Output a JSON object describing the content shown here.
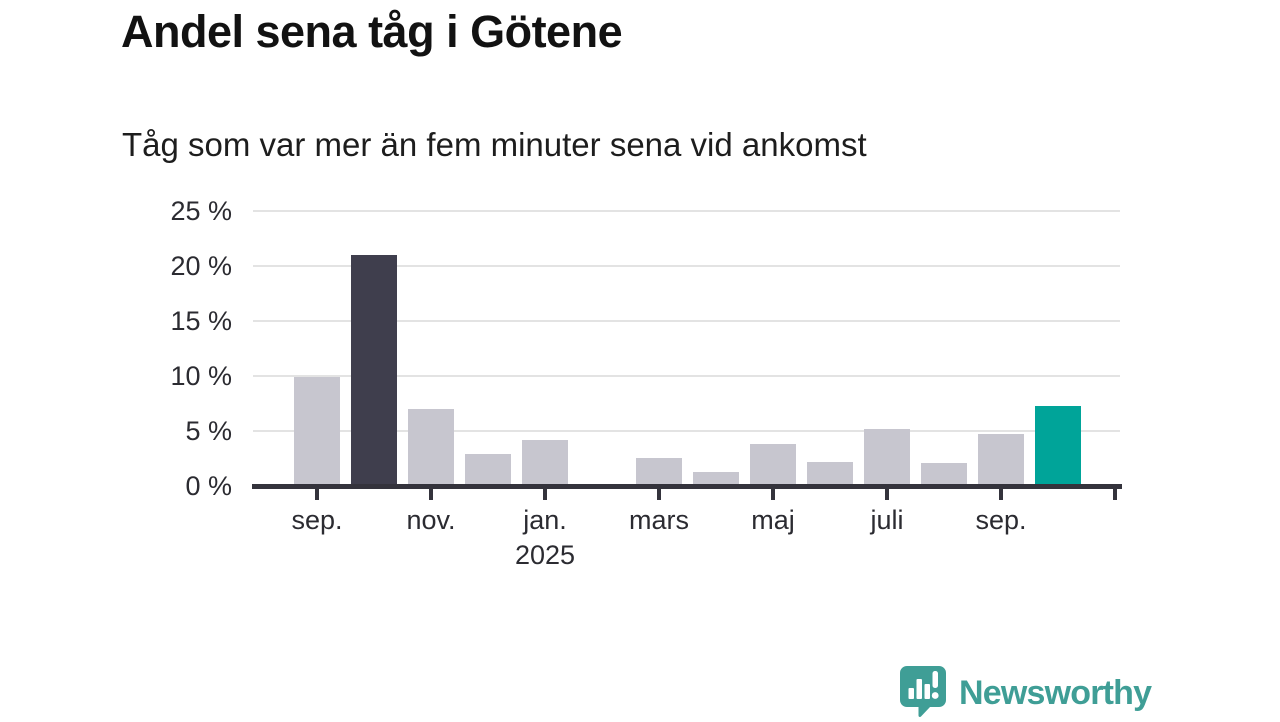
{
  "header": {
    "title": "Andel sena tåg i Götene",
    "subtitle": "Tåg som var mer än fem minuter sena vid ankomst"
  },
  "chart_data": {
    "type": "bar",
    "title": "Andel sena tåg i Götene",
    "subtitle": "Tåg som var mer än fem minuter sena vid ankomst",
    "unit": "%",
    "categories": [
      "sep. 2024",
      "okt. 2024",
      "nov. 2024",
      "dec. 2024",
      "jan. 2025",
      "feb. 2025",
      "mars 2025",
      "apr. 2025",
      "maj 2025",
      "juni 2025",
      "juli 2025",
      "aug. 2025",
      "sep. 2025",
      "okt. 2025"
    ],
    "values": [
      9.9,
      21.0,
      7.0,
      2.9,
      4.2,
      0,
      2.5,
      1.3,
      3.8,
      2.2,
      5.2,
      2.1,
      4.7,
      7.3
    ],
    "bar_roles": [
      "normal",
      "highlight_dark",
      "normal",
      "normal",
      "normal",
      "normal",
      "normal",
      "normal",
      "normal",
      "normal",
      "normal",
      "normal",
      "normal",
      "highlight_teal"
    ],
    "ylim": [
      0,
      25
    ],
    "ytick_values": [
      0,
      5,
      10,
      15,
      20,
      25
    ],
    "ytick_labels": [
      "0 %",
      "5 %",
      "10 %",
      "15 %",
      "20 %",
      "25 %"
    ],
    "xticks": [
      {
        "month_index": 0,
        "label": "sep.",
        "sublabel": ""
      },
      {
        "month_index": 2,
        "label": "nov.",
        "sublabel": ""
      },
      {
        "month_index": 4,
        "label": "jan.",
        "sublabel": "2025"
      },
      {
        "month_index": 6,
        "label": "mars",
        "sublabel": ""
      },
      {
        "month_index": 8,
        "label": "maj",
        "sublabel": ""
      },
      {
        "month_index": 10,
        "label": "juli",
        "sublabel": ""
      },
      {
        "month_index": 12,
        "label": "sep.",
        "sublabel": ""
      },
      {
        "month_index": 14,
        "label": "",
        "sublabel": ""
      }
    ],
    "grid": true,
    "legend": false,
    "colors": {
      "normal": "#c7c6cf",
      "highlight_dark": "#3f3e4d",
      "highlight_teal": "#00a499",
      "axis": "#34333c",
      "grid": "#e3e3e3",
      "tick_text": "#2b2b31"
    }
  },
  "footer": {
    "brand": "Newsworthy",
    "brand_color": "#3f9e96"
  }
}
